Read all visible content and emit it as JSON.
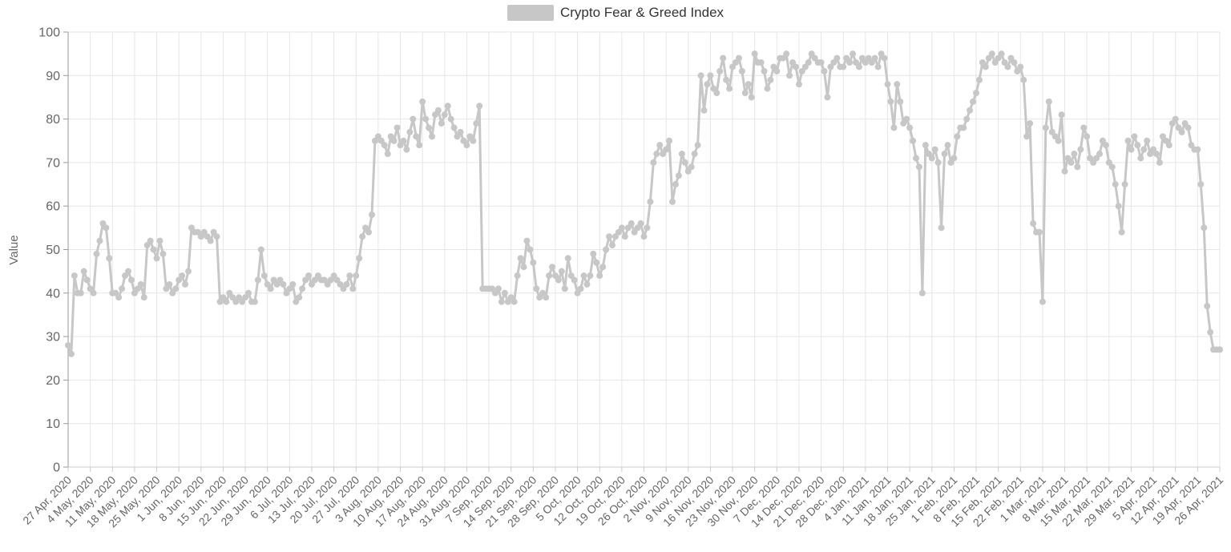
{
  "legend": {
    "label": "Crypto Fear & Greed Index",
    "swatch_color": "#c7c7c7"
  },
  "y_axis": {
    "title": "Value",
    "tick_labels": [
      "0",
      "10",
      "20",
      "30",
      "40",
      "50",
      "60",
      "70",
      "80",
      "90",
      "100"
    ]
  },
  "chart_data": {
    "type": "line",
    "title": "Crypto Fear & Greed Index",
    "ylabel": "Value",
    "ylim": [
      0,
      100
    ],
    "y_tick_interval": 10,
    "grid": true,
    "legend_position": "top",
    "series_color": "#c7c7c7",
    "marker_radius": 4,
    "line_width": 3,
    "frequency": "daily",
    "x_tick_labels": [
      "27 Apr, 2020",
      "4 May, 2020",
      "11 May, 2020",
      "18 May, 2020",
      "25 May, 2020",
      "1 Jun, 2020",
      "8 Jun, 2020",
      "15 Jun, 2020",
      "22 Jun, 2020",
      "29 Jun, 2020",
      "6 Jul, 2020",
      "13 Jul, 2020",
      "20 Jul, 2020",
      "27 Jul, 2020",
      "3 Aug, 2020",
      "10 Aug, 2020",
      "17 Aug, 2020",
      "24 Aug, 2020",
      "31 Aug, 2020",
      "7 Sep, 2020",
      "14 Sep, 2020",
      "21 Sep, 2020",
      "28 Sep, 2020",
      "5 Oct, 2020",
      "12 Oct, 2020",
      "19 Oct, 2020",
      "26 Oct, 2020",
      "2 Nov, 2020",
      "9 Nov, 2020",
      "16 Nov, 2020",
      "23 Nov, 2020",
      "30 Nov, 2020",
      "7 Dec, 2020",
      "14 Dec, 2020",
      "21 Dec, 2020",
      "28 Dec, 2020",
      "4 Jan, 2021",
      "11 Jan, 2021",
      "18 Jan, 2021",
      "25 Jan, 2021",
      "1 Feb, 2021",
      "8 Feb, 2021",
      "15 Feb, 2021",
      "22 Feb, 2021",
      "1 Mar, 2021",
      "8 Mar, 2021",
      "15 Mar, 2021",
      "22 Mar, 2021",
      "29 Mar, 2021",
      "5 Apr, 2021",
      "12 Apr, 2021",
      "19 Apr, 2021",
      "26 Apr, 2021"
    ],
    "values": [
      28,
      26,
      44,
      40,
      40,
      45,
      43,
      41,
      40,
      49,
      52,
      56,
      55,
      48,
      40,
      40,
      39,
      41,
      44,
      45,
      43,
      40,
      41,
      42,
      39,
      51,
      52,
      50,
      48,
      52,
      49,
      41,
      42,
      40,
      41,
      43,
      44,
      42,
      45,
      55,
      54,
      54,
      53,
      54,
      53,
      52,
      54,
      53,
      38,
      39,
      38,
      40,
      39,
      38,
      39,
      38,
      39,
      40,
      38,
      38,
      43,
      50,
      44,
      42,
      41,
      43,
      42,
      43,
      42,
      40,
      41,
      42,
      38,
      39,
      41,
      43,
      44,
      42,
      43,
      44,
      43,
      43,
      42,
      43,
      44,
      43,
      42,
      41,
      42,
      44,
      41,
      44,
      48,
      53,
      55,
      54,
      58,
      75,
      76,
      75,
      74,
      72,
      76,
      75,
      78,
      74,
      75,
      73,
      77,
      80,
      76,
      74,
      84,
      80,
      78,
      76,
      81,
      82,
      79,
      81,
      83,
      80,
      78,
      76,
      77,
      75,
      74,
      76,
      75,
      79,
      83,
      41,
      41,
      41,
      41,
      40,
      41,
      38,
      40,
      38,
      39,
      38,
      44,
      48,
      46,
      52,
      50,
      47,
      41,
      39,
      40,
      39,
      44,
      46,
      44,
      43,
      45,
      41,
      48,
      44,
      43,
      40,
      41,
      44,
      42,
      44,
      49,
      47,
      44,
      46,
      50,
      53,
      51,
      53,
      54,
      55,
      53,
      55,
      56,
      54,
      55,
      56,
      53,
      55,
      61,
      70,
      72,
      74,
      72,
      73,
      75,
      61,
      65,
      67,
      72,
      70,
      68,
      69,
      72,
      74,
      90,
      82,
      88,
      90,
      87,
      86,
      91,
      94,
      89,
      87,
      92,
      93,
      94,
      91,
      86,
      88,
      85,
      95,
      93,
      93,
      91,
      87,
      89,
      92,
      91,
      94,
      94,
      95,
      90,
      93,
      92,
      88,
      91,
      92,
      93,
      95,
      94,
      93,
      93,
      91,
      85,
      92,
      93,
      94,
      92,
      92,
      94,
      93,
      95,
      93,
      92,
      94,
      93,
      94,
      93,
      94,
      92,
      95,
      94,
      88,
      84,
      78,
      88,
      84,
      79,
      80,
      78,
      75,
      71,
      69,
      40,
      74,
      72,
      71,
      73,
      70,
      55,
      72,
      74,
      70,
      71,
      76,
      78,
      78,
      80,
      82,
      84,
      86,
      89,
      93,
      92,
      94,
      95,
      93,
      94,
      95,
      93,
      92,
      94,
      93,
      91,
      92,
      89,
      76,
      79,
      56,
      54,
      54,
      38,
      78,
      84,
      77,
      76,
      75,
      81,
      68,
      71,
      70,
      72,
      69,
      73,
      78,
      76,
      71,
      70,
      71,
      72,
      75,
      74,
      70,
      69,
      65,
      60,
      54,
      65,
      75,
      73,
      76,
      74,
      71,
      73,
      75,
      72,
      73,
      72,
      70,
      76,
      75,
      74,
      79,
      80,
      78,
      77,
      79,
      78,
      74,
      73,
      73,
      65,
      55,
      37,
      31,
      27,
      27,
      27
    ]
  }
}
